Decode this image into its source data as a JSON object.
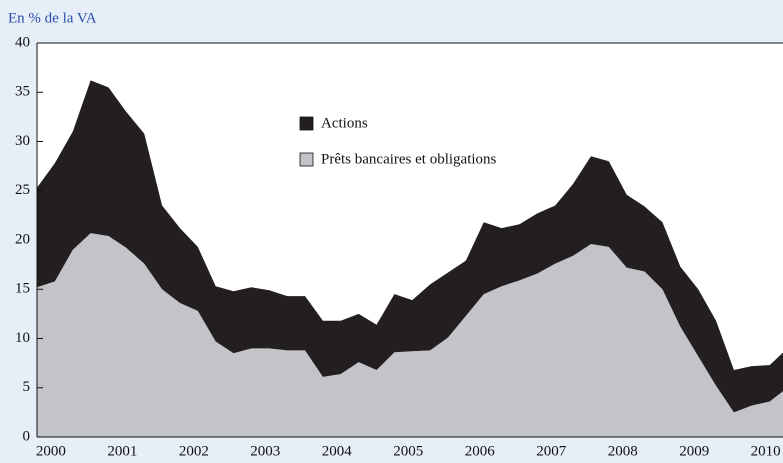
{
  "chart_data": {
    "type": "area",
    "stacked": true,
    "y_label": "En % de la VA",
    "categories": [
      null,
      "2000",
      null,
      null,
      null,
      "2001",
      null,
      null,
      null,
      "2002",
      null,
      null,
      null,
      "2003",
      null,
      null,
      null,
      "2004",
      null,
      null,
      null,
      "2005",
      null,
      null,
      null,
      "2006",
      null,
      null,
      null,
      "2007",
      null,
      null,
      null,
      "2008",
      null,
      null,
      null,
      "2009",
      null,
      null,
      null,
      "2010",
      null
    ],
    "series": [
      {
        "name": "Prêts bancaires et obligations",
        "color": "#c2c4ca",
        "values": [
          15.2,
          15.8,
          19,
          20.7,
          20.4,
          19.2,
          17.6,
          15,
          13.6,
          12.8,
          9.7,
          8.5,
          9,
          9,
          8.8,
          8.8,
          6.1,
          6.4,
          7.6,
          6.8,
          8.6,
          8.7,
          8.8,
          10.1,
          12.3,
          14.5,
          15.3,
          15.9,
          16.6,
          17.6,
          18.4,
          19.6,
          19.3,
          17.2,
          16.8,
          15,
          11.2,
          8.2,
          5.2,
          2.5,
          3.2,
          3.6,
          5
        ]
      },
      {
        "name": "Actions",
        "color": "#231f20",
        "values": [
          10.1,
          12,
          12,
          15.5,
          15.1,
          13.8,
          13.2,
          8.5,
          7.6,
          6.5,
          5.6,
          6.3,
          6.2,
          5.9,
          5.5,
          5.5,
          5.7,
          5.4,
          4.9,
          4.6,
          5.9,
          5.2,
          6.7,
          6.6,
          5.6,
          7.3,
          5.9,
          5.7,
          6.1,
          5.9,
          7.3,
          8.9,
          8.7,
          7.4,
          6.6,
          6.8,
          6.1,
          6.8,
          6.6,
          4.3,
          4,
          3.7,
          4
        ]
      }
    ],
    "ylim": [
      0,
      40
    ],
    "yticks": [
      0,
      5,
      10,
      15,
      20,
      25,
      30,
      35,
      40
    ]
  }
}
